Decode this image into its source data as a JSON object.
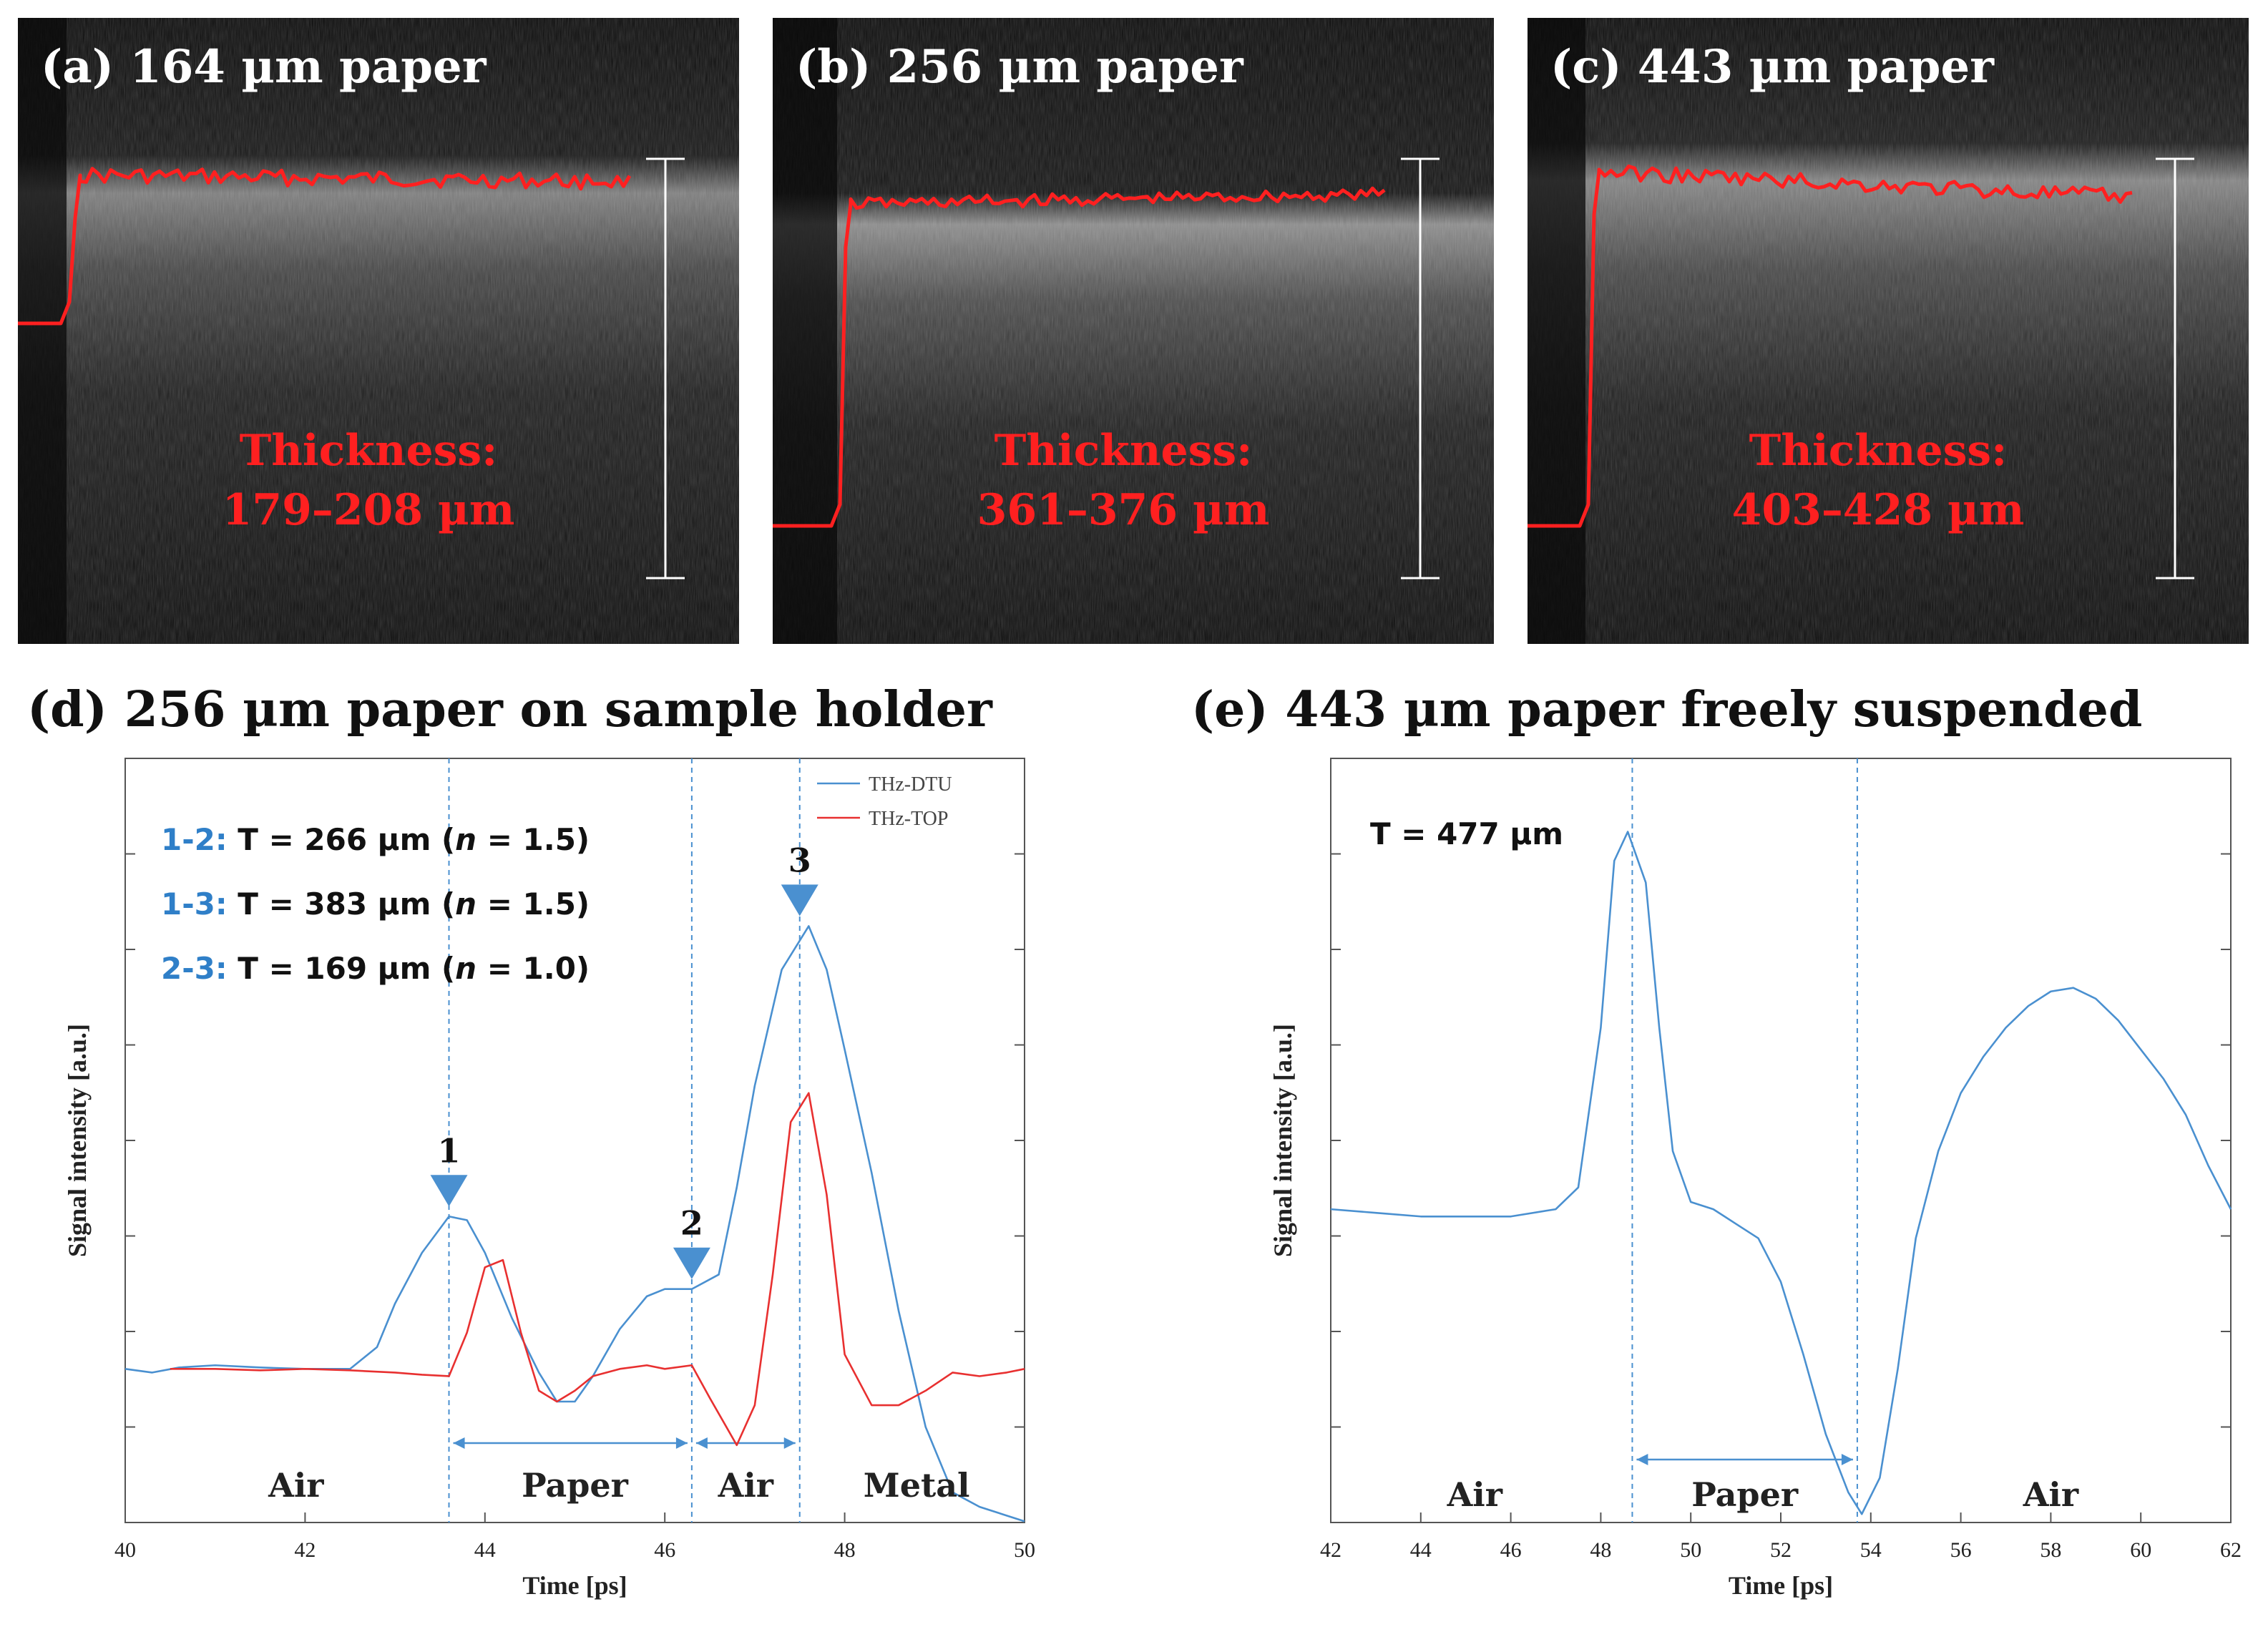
{
  "chart_data": [
    {
      "id": "a",
      "type": "image",
      "title": "(a) 164 µm paper",
      "annotation": [
        "Thickness:",
        "179–208 µm"
      ],
      "colors": {
        "trace": "#ff2020",
        "annotation": "#ff2020",
        "title": "#ffffff"
      }
    },
    {
      "id": "b",
      "type": "image",
      "title": "(b) 256 µm paper",
      "annotation": [
        "Thickness:",
        "361–376 µm"
      ],
      "colors": {
        "trace": "#ff2020",
        "annotation": "#ff2020",
        "title": "#ffffff"
      }
    },
    {
      "id": "c",
      "type": "image",
      "title": "(c) 443 µm paper",
      "annotation": [
        "Thickness:",
        "403–428 µm"
      ],
      "colors": {
        "trace": "#ff2020",
        "annotation": "#ff2020",
        "title": "#ffffff"
      }
    },
    {
      "id": "d",
      "type": "line",
      "title": "(d) 256 µm paper on sample holder",
      "xlabel": "Time [ps]",
      "ylabel": "Signal intensity [a.u.]",
      "xlim": [
        40,
        50
      ],
      "ylim": [
        0,
        10
      ],
      "xticks": [
        40,
        42,
        44,
        46,
        48,
        50
      ],
      "legend": [
        {
          "name": "THz-DTU",
          "color": "#4a90d0"
        },
        {
          "name": "THz-TOP",
          "color": "#e83030"
        }
      ],
      "series": [
        {
          "name": "THz-DTU",
          "color": "#4a90d0",
          "x": [
            40,
            40.3,
            40.6,
            41,
            41.5,
            42,
            42.5,
            42.8,
            43,
            43.3,
            43.6,
            43.8,
            44,
            44.3,
            44.6,
            44.8,
            45,
            45.2,
            45.5,
            45.8,
            46,
            46.3,
            46.6,
            46.8,
            47,
            47.3,
            47.6,
            47.8,
            48,
            48.3,
            48.6,
            48.9,
            49.2,
            49.5,
            50
          ],
          "y": [
            1.8,
            1.75,
            1.82,
            1.85,
            1.82,
            1.8,
            1.8,
            2.1,
            2.7,
            3.4,
            3.9,
            3.85,
            3.4,
            2.5,
            1.75,
            1.35,
            1.35,
            1.7,
            2.35,
            2.8,
            2.9,
            2.9,
            3.1,
            4.3,
            5.7,
            7.3,
            7.9,
            7.3,
            6.2,
            4.5,
            2.6,
            1.0,
            0.1,
            -0.1,
            -0.3
          ]
        },
        {
          "name": "THz-TOP",
          "color": "#e83030",
          "x": [
            40.5,
            41,
            41.5,
            42,
            42.5,
            43,
            43.3,
            43.6,
            43.8,
            44,
            44.2,
            44.4,
            44.6,
            44.8,
            45,
            45.2,
            45.5,
            45.8,
            46,
            46.3,
            46.5,
            46.8,
            47,
            47.2,
            47.4,
            47.6,
            47.8,
            48,
            48.3,
            48.6,
            48.9,
            49.2,
            49.5,
            49.8,
            50
          ],
          "y": [
            1.8,
            1.8,
            1.78,
            1.8,
            1.78,
            1.75,
            1.72,
            1.7,
            2.3,
            3.2,
            3.3,
            2.3,
            1.5,
            1.35,
            1.5,
            1.7,
            1.8,
            1.85,
            1.8,
            1.85,
            1.4,
            0.75,
            1.3,
            3.1,
            5.2,
            5.6,
            4.2,
            2.0,
            1.3,
            1.3,
            1.5,
            1.75,
            1.7,
            1.75,
            1.8
          ]
        }
      ],
      "markers": [
        {
          "label": "1",
          "x": 43.6,
          "y": 3.9
        },
        {
          "label": "2",
          "x": 46.3,
          "y": 2.9
        },
        {
          "label": "3",
          "x": 47.5,
          "y": 7.9
        }
      ],
      "vlines": [
        43.6,
        46.3,
        47.5
      ],
      "spans": [
        [
          43.6,
          46.3
        ],
        [
          46.3,
          47.5
        ]
      ],
      "regions": [
        {
          "label": "Air",
          "x": 41.9
        },
        {
          "label": "Paper",
          "x": 45.0
        },
        {
          "label": "Air",
          "x": 46.9
        },
        {
          "label": "Metal",
          "x": 48.8
        }
      ],
      "annotations": [
        {
          "key": "1-2:",
          "text": "T = 266 µm (",
          "n": "n",
          "tail": " = 1.5)"
        },
        {
          "key": "1-3:",
          "text": "T = 383 µm (",
          "n": "n",
          "tail": " = 1.5)"
        },
        {
          "key": "2-3:",
          "text": "T = 169 µm (",
          "n": "n",
          "tail": " = 1.0)"
        }
      ]
    },
    {
      "id": "e",
      "type": "line",
      "title": "(e) 443 µm paper freely suspended",
      "xlabel": "Time [ps]",
      "ylabel": "Signal intensity [a.u.]",
      "xlim": [
        42,
        62
      ],
      "ylim": [
        0,
        10
      ],
      "xticks": [
        42,
        44,
        46,
        48,
        50,
        52,
        54,
        56,
        58,
        60,
        62
      ],
      "series": [
        {
          "name": "THz-DTU",
          "color": "#4a90d0",
          "x": [
            42,
            43,
            44,
            45,
            46,
            47,
            47.5,
            48,
            48.3,
            48.6,
            49,
            49.3,
            49.6,
            50,
            50.5,
            51,
            51.5,
            52,
            52.5,
            53,
            53.5,
            53.8,
            54.2,
            54.6,
            55,
            55.5,
            56,
            56.5,
            57,
            57.5,
            58,
            58.5,
            59,
            59.5,
            60,
            60.5,
            61,
            61.5,
            62
          ],
          "y": [
            4.0,
            3.95,
            3.9,
            3.9,
            3.9,
            4.0,
            4.3,
            6.5,
            8.8,
            9.2,
            8.5,
            6.5,
            4.8,
            4.1,
            4.0,
            3.8,
            3.6,
            3.0,
            2.0,
            0.9,
            0.1,
            -0.2,
            0.3,
            1.8,
            3.6,
            4.8,
            5.6,
            6.1,
            6.5,
            6.8,
            7.0,
            7.05,
            6.9,
            6.6,
            6.2,
            5.8,
            5.3,
            4.6,
            4.0
          ]
        }
      ],
      "vlines": [
        48.7,
        53.7
      ],
      "spans": [
        [
          48.7,
          53.7
        ]
      ],
      "regions": [
        {
          "label": "Air",
          "x": 45.2
        },
        {
          "label": "Paper",
          "x": 51.2
        },
        {
          "label": "Air",
          "x": 58.0
        }
      ],
      "annotations": [
        {
          "text": "T = 477 µm"
        }
      ]
    }
  ]
}
